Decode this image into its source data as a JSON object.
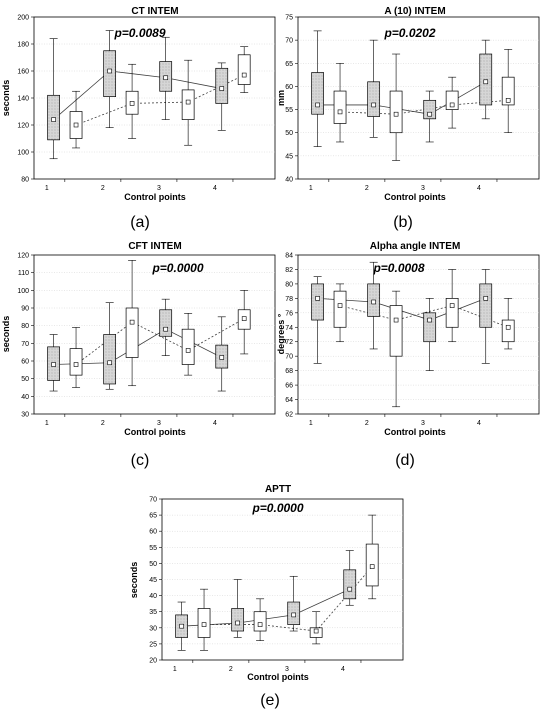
{
  "figure": {
    "background": "#ffffff",
    "colors": {
      "hatched_box": "#d9d9d9",
      "open_box": "#ffffff",
      "line": "#404040"
    }
  },
  "chart_data": [
    {
      "type": "box",
      "title": "CT INTEM",
      "annotation": "p=0.0089",
      "sublabel": "(a)",
      "xlabel": "Control points",
      "ylabel": "seconds",
      "ylim": [
        80,
        200
      ],
      "yticks": [
        80,
        100,
        120,
        140,
        160,
        180,
        200
      ],
      "xtick_labels": [
        "1",
        "2",
        "3",
        "4"
      ],
      "boxes": [
        {
          "x": 0.8,
          "style": "hatched",
          "whisker_low": 95,
          "q1": 109,
          "median": 124,
          "q3": 142,
          "whisker_high": 184
        },
        {
          "x": 1.2,
          "style": "open",
          "whisker_low": 103,
          "q1": 110,
          "median": 120,
          "q3": 130,
          "whisker_high": 145
        },
        {
          "x": 1.8,
          "style": "hatched",
          "whisker_low": 118,
          "q1": 141,
          "median": 160,
          "q3": 175,
          "whisker_high": 190
        },
        {
          "x": 2.2,
          "style": "open",
          "whisker_low": 110,
          "q1": 128,
          "median": 136,
          "q3": 145,
          "whisker_high": 165
        },
        {
          "x": 2.8,
          "style": "hatched",
          "whisker_low": 124,
          "q1": 145,
          "median": 155,
          "q3": 167,
          "whisker_high": 185
        },
        {
          "x": 3.2,
          "style": "open",
          "whisker_low": 105,
          "q1": 124,
          "median": 137,
          "q3": 146,
          "whisker_high": 168
        },
        {
          "x": 3.8,
          "style": "hatched",
          "whisker_low": 116,
          "q1": 136,
          "median": 147,
          "q3": 162,
          "whisker_high": 166
        },
        {
          "x": 4.2,
          "style": "open",
          "whisker_low": 144,
          "q1": 150,
          "median": 157,
          "q3": 172,
          "whisker_high": 178
        }
      ]
    },
    {
      "type": "box",
      "title": "A (10) INTEM",
      "annotation": "p=0.0202",
      "sublabel": "(b)",
      "xlabel": "Control points",
      "ylabel": "mm",
      "ylim": [
        40,
        75
      ],
      "yticks": [
        40,
        45,
        50,
        55,
        60,
        65,
        70,
        75
      ],
      "xtick_labels": [
        "1",
        "2",
        "3",
        "4"
      ],
      "boxes": [
        {
          "x": 0.8,
          "style": "hatched",
          "whisker_low": 47,
          "q1": 54,
          "median": 56,
          "q3": 63,
          "whisker_high": 72
        },
        {
          "x": 1.2,
          "style": "open",
          "whisker_low": 48,
          "q1": 52,
          "median": 54.5,
          "q3": 59,
          "whisker_high": 65
        },
        {
          "x": 1.8,
          "style": "hatched",
          "whisker_low": 49,
          "q1": 53.5,
          "median": 56,
          "q3": 61,
          "whisker_high": 70
        },
        {
          "x": 2.2,
          "style": "open",
          "whisker_low": 44,
          "q1": 50,
          "median": 54,
          "q3": 59,
          "whisker_high": 67
        },
        {
          "x": 2.8,
          "style": "hatched",
          "whisker_low": 48,
          "q1": 53,
          "median": 54,
          "q3": 57,
          "whisker_high": 59
        },
        {
          "x": 3.2,
          "style": "open",
          "whisker_low": 51,
          "q1": 55,
          "median": 56,
          "q3": 59,
          "whisker_high": 62
        },
        {
          "x": 3.8,
          "style": "hatched",
          "whisker_low": 53,
          "q1": 56,
          "median": 61,
          "q3": 67,
          "whisker_high": 70
        },
        {
          "x": 4.2,
          "style": "open",
          "whisker_low": 50,
          "q1": 56,
          "median": 57,
          "q3": 62,
          "whisker_high": 68
        }
      ]
    },
    {
      "type": "box",
      "title": "CFT INTEM",
      "annotation": "p=0.0000",
      "sublabel": "(c)",
      "xlabel": "Control points",
      "ylabel": "seconds",
      "ylim": [
        30,
        120
      ],
      "yticks": [
        30,
        40,
        50,
        60,
        70,
        80,
        90,
        100,
        110,
        120
      ],
      "xtick_labels": [
        "1",
        "2",
        "3",
        "4"
      ],
      "boxes": [
        {
          "x": 0.8,
          "style": "hatched",
          "whisker_low": 43,
          "q1": 49,
          "median": 58,
          "q3": 68,
          "whisker_high": 75
        },
        {
          "x": 1.2,
          "style": "open",
          "whisker_low": 45,
          "q1": 52,
          "median": 58,
          "q3": 67,
          "whisker_high": 79
        },
        {
          "x": 1.8,
          "style": "hatched",
          "whisker_low": 44,
          "q1": 47,
          "median": 59,
          "q3": 75,
          "whisker_high": 93
        },
        {
          "x": 2.2,
          "style": "open",
          "whisker_low": 46,
          "q1": 62,
          "median": 82,
          "q3": 90,
          "whisker_high": 117
        },
        {
          "x": 2.8,
          "style": "hatched",
          "whisker_low": 63,
          "q1": 74,
          "median": 78,
          "q3": 89,
          "whisker_high": 95
        },
        {
          "x": 3.2,
          "style": "open",
          "whisker_low": 52,
          "q1": 58,
          "median": 66,
          "q3": 78,
          "whisker_high": 87
        },
        {
          "x": 3.8,
          "style": "hatched",
          "whisker_low": 43,
          "q1": 56,
          "median": 62,
          "q3": 69,
          "whisker_high": 85
        },
        {
          "x": 4.2,
          "style": "open",
          "whisker_low": 64,
          "q1": 78,
          "median": 84,
          "q3": 89,
          "whisker_high": 100
        }
      ]
    },
    {
      "type": "box",
      "title": "Alpha angle INTEM",
      "annotation": "p=0.0008",
      "sublabel": "(d)",
      "xlabel": "Control points",
      "ylabel": "degrees °",
      "ylim": [
        62,
        84
      ],
      "yticks": [
        62,
        64,
        66,
        68,
        70,
        72,
        74,
        76,
        78,
        80,
        82,
        84
      ],
      "xtick_labels": [
        "1",
        "2",
        "3",
        "4"
      ],
      "boxes": [
        {
          "x": 0.8,
          "style": "hatched",
          "whisker_low": 69,
          "q1": 75,
          "median": 78,
          "q3": 80,
          "whisker_high": 81
        },
        {
          "x": 1.2,
          "style": "open",
          "whisker_low": 72,
          "q1": 74,
          "median": 77,
          "q3": 79,
          "whisker_high": 80
        },
        {
          "x": 1.8,
          "style": "hatched",
          "whisker_low": 71,
          "q1": 75.5,
          "median": 77.5,
          "q3": 80,
          "whisker_high": 83
        },
        {
          "x": 2.2,
          "style": "open",
          "whisker_low": 63,
          "q1": 70,
          "median": 75,
          "q3": 77,
          "whisker_high": 79
        },
        {
          "x": 2.8,
          "style": "hatched",
          "whisker_low": 68,
          "q1": 72,
          "median": 75,
          "q3": 76,
          "whisker_high": 78
        },
        {
          "x": 3.2,
          "style": "open",
          "whisker_low": 72,
          "q1": 74,
          "median": 77,
          "q3": 78,
          "whisker_high": 82
        },
        {
          "x": 3.8,
          "style": "hatched",
          "whisker_low": 69,
          "q1": 74,
          "median": 78,
          "q3": 80,
          "whisker_high": 82
        },
        {
          "x": 4.2,
          "style": "open",
          "whisker_low": 71,
          "q1": 72,
          "median": 74,
          "q3": 75,
          "whisker_high": 78
        }
      ]
    },
    {
      "type": "box",
      "title": "APTT",
      "annotation": "p=0.0000",
      "sublabel": "(e)",
      "xlabel": "Control points",
      "ylabel": "seconds",
      "ylim": [
        20,
        70
      ],
      "yticks": [
        20,
        25,
        30,
        35,
        40,
        45,
        50,
        55,
        60,
        65,
        70
      ],
      "xtick_labels": [
        "1",
        "2",
        "3",
        "4"
      ],
      "boxes": [
        {
          "x": 0.8,
          "style": "hatched",
          "whisker_low": 23,
          "q1": 27,
          "median": 30.5,
          "q3": 34,
          "whisker_high": 38
        },
        {
          "x": 1.2,
          "style": "open",
          "whisker_low": 23,
          "q1": 27,
          "median": 31,
          "q3": 36,
          "whisker_high": 42
        },
        {
          "x": 1.8,
          "style": "hatched",
          "whisker_low": 27,
          "q1": 29,
          "median": 31.5,
          "q3": 36,
          "whisker_high": 45
        },
        {
          "x": 2.2,
          "style": "open",
          "whisker_low": 26,
          "q1": 29,
          "median": 31,
          "q3": 35,
          "whisker_high": 39
        },
        {
          "x": 2.8,
          "style": "hatched",
          "whisker_low": 29,
          "q1": 31,
          "median": 34,
          "q3": 38,
          "whisker_high": 46
        },
        {
          "x": 3.2,
          "style": "open",
          "whisker_low": 25,
          "q1": 27,
          "median": 29,
          "q3": 30,
          "whisker_high": 35
        },
        {
          "x": 3.8,
          "style": "hatched",
          "whisker_low": 37,
          "q1": 39,
          "median": 42,
          "q3": 48,
          "whisker_high": 54
        },
        {
          "x": 4.2,
          "style": "open",
          "whisker_low": 39,
          "q1": 43,
          "median": 49,
          "q3": 56,
          "whisker_high": 65
        }
      ]
    }
  ]
}
